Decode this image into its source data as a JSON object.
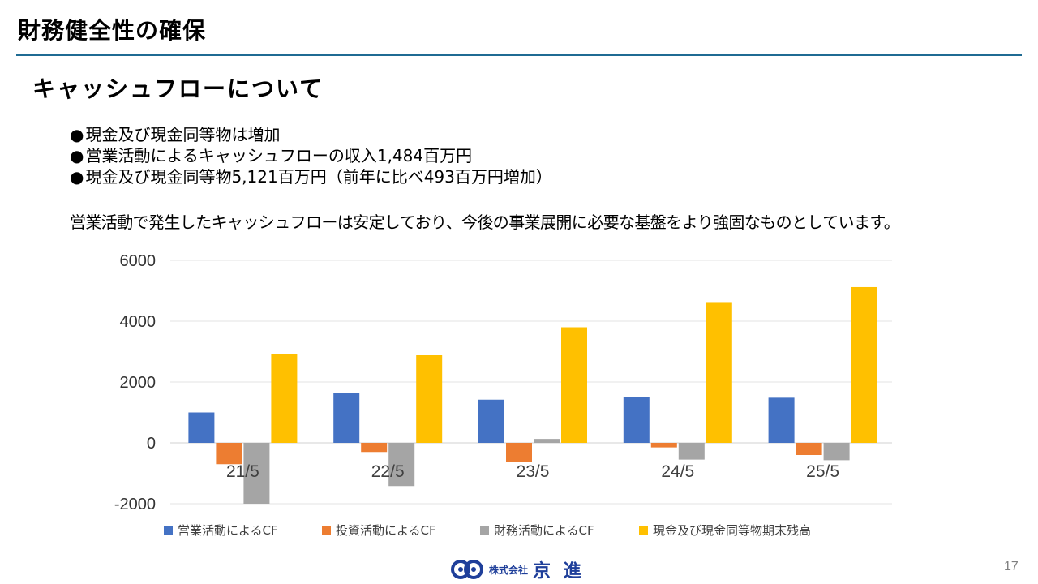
{
  "header": {
    "title": "財務健全性の確保",
    "section": "キャッシュフローについて"
  },
  "bullets": [
    {
      "marker": "●",
      "text": "現金及び現金同等物は増加"
    },
    {
      "marker": "●",
      "text": "営業活動によるキャッシュフローの収入1,484百万円"
    },
    {
      "marker": "●",
      "text": "現金及び現金同等物5,121百万円（前年に比べ493百万円増加）"
    }
  ],
  "summary": "営業活動で発生したキャッシュフローは安定しており、今後の事業展開に必要な基盤をより強固なものとしています。",
  "chart_data": {
    "type": "bar",
    "categories": [
      "21/5",
      "22/5",
      "23/5",
      "24/5",
      "25/5"
    ],
    "series": [
      {
        "name": "営業活動によるCF",
        "color": "#4472C4",
        "values": [
          1000,
          1650,
          1420,
          1500,
          1484
        ]
      },
      {
        "name": "投資活動によるCF",
        "color": "#ED7D31",
        "values": [
          -700,
          -300,
          -620,
          -150,
          -400
        ]
      },
      {
        "name": "財務活動によるCF",
        "color": "#A5A5A5",
        "values": [
          -2000,
          -1420,
          130,
          -550,
          -570
        ]
      },
      {
        "name": "現金及び現金同等物期末残高",
        "color": "#FFC000",
        "values": [
          2930,
          2880,
          3800,
          4628,
          5121
        ]
      }
    ],
    "ylim": [
      -2000,
      6000
    ],
    "yticks": [
      "6000",
      "4000",
      "2000",
      "0",
      "-2000"
    ],
    "grid": true,
    "legend_position": "bottom"
  },
  "footer": {
    "logo_company": "株式会社",
    "logo_name": "京 進",
    "page_number": "17"
  }
}
